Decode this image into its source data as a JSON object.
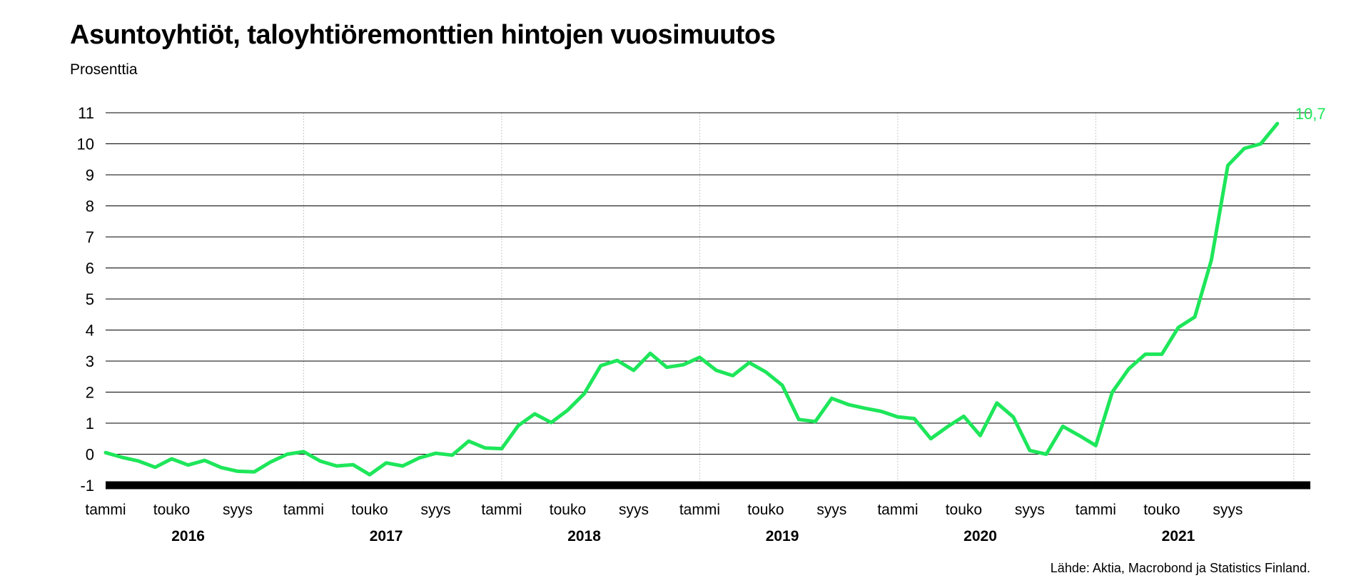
{
  "chart_data": {
    "type": "line",
    "title": "Asuntoyhtiöt, taloyhtiöremonttien hintojen vuosimuutos",
    "subtitle": "Prosenttia",
    "source": "Lähde: Aktia, Macrobond ja Statistics Finland.",
    "xlabel": "",
    "ylabel": "",
    "ylim": [
      -1,
      11
    ],
    "yticks": [
      "-1",
      "0",
      "1",
      "2",
      "3",
      "4",
      "5",
      "6",
      "7",
      "8",
      "9",
      "10",
      "11"
    ],
    "grid": true,
    "month_tick_labels": [
      "tammi",
      "touko",
      "syys"
    ],
    "years": [
      "2016",
      "2017",
      "2018",
      "2019",
      "2020",
      "2021"
    ],
    "end_label": "10,7",
    "line_color": "#1ee65a",
    "series": [
      {
        "x": [
          "2016-01",
          "2016-02",
          "2016-03",
          "2016-04",
          "2016-05",
          "2016-06",
          "2016-07",
          "2016-08",
          "2016-09",
          "2016-10",
          "2016-11",
          "2016-12",
          "2017-01",
          "2017-02",
          "2017-03",
          "2017-04",
          "2017-05",
          "2017-06",
          "2017-07",
          "2017-08",
          "2017-09",
          "2017-10",
          "2017-11",
          "2017-12",
          "2018-01",
          "2018-02",
          "2018-03",
          "2018-04",
          "2018-05",
          "2018-06",
          "2018-07",
          "2018-08",
          "2018-09",
          "2018-10",
          "2018-11",
          "2018-12",
          "2019-01",
          "2019-02",
          "2019-03",
          "2019-04",
          "2019-05",
          "2019-06",
          "2019-07",
          "2019-08",
          "2019-09",
          "2019-10",
          "2019-11",
          "2019-12",
          "2020-01",
          "2020-02",
          "2020-03",
          "2020-04",
          "2020-05",
          "2020-06",
          "2020-07",
          "2020-08",
          "2020-09",
          "2020-10",
          "2020-11",
          "2020-12",
          "2021-01",
          "2021-02",
          "2021-03",
          "2021-04",
          "2021-05",
          "2021-06",
          "2021-07",
          "2021-08",
          "2021-09",
          "2021-10",
          "2021-11",
          "2021-12",
          "2022-01",
          "2022-02"
        ],
        "values": [
          0.05,
          -0.1,
          -0.22,
          -0.42,
          -0.15,
          -0.35,
          -0.2,
          -0.43,
          -0.55,
          -0.57,
          -0.25,
          0.0,
          0.08,
          -0.22,
          -0.38,
          -0.34,
          -0.66,
          -0.28,
          -0.38,
          -0.12,
          0.03,
          -0.03,
          0.42,
          0.2,
          0.18,
          0.92,
          1.3,
          1.02,
          1.42,
          1.95,
          2.85,
          3.02,
          2.7,
          3.25,
          2.8,
          2.88,
          3.12,
          2.7,
          2.53,
          2.95,
          2.65,
          2.22,
          1.12,
          1.05,
          1.8,
          1.6,
          1.48,
          1.38,
          1.2,
          1.15,
          0.5,
          0.88,
          1.22,
          0.6,
          1.65,
          1.2,
          0.12,
          0.0,
          0.9,
          0.6,
          0.28,
          2.0,
          2.75,
          3.22,
          3.22,
          4.08,
          4.42,
          6.25,
          9.3,
          9.85,
          10.0,
          10.65,
          null,
          null
        ]
      }
    ]
  }
}
